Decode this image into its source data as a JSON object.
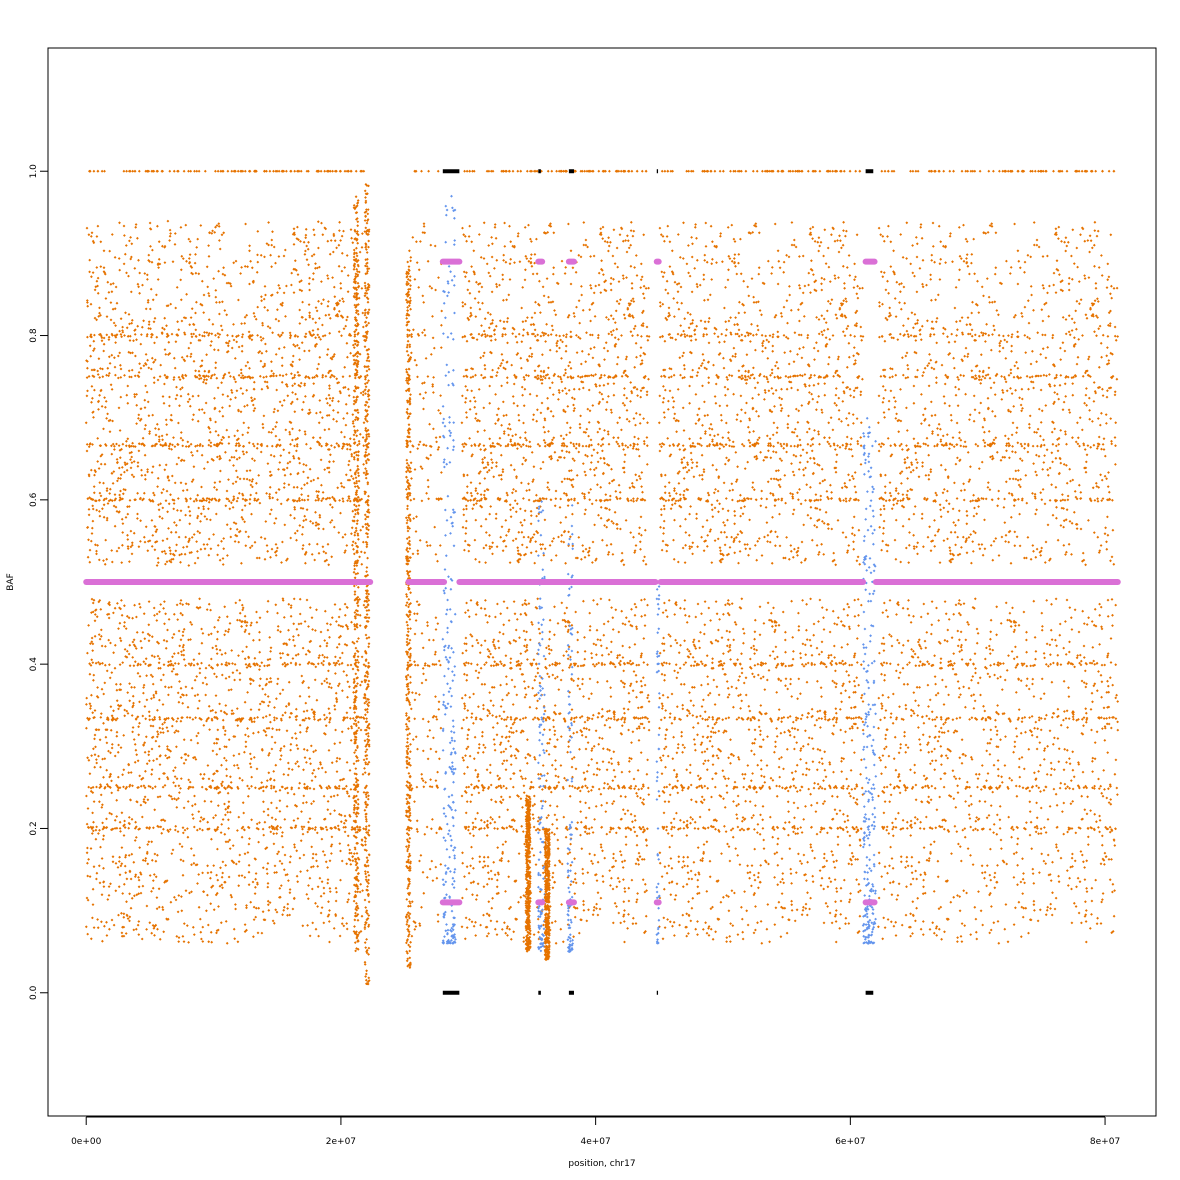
{
  "chart_data": {
    "type": "scatter",
    "xlabel": "position, chr17",
    "ylabel": "BAF",
    "xlim": [
      -3000000,
      84000000
    ],
    "ylim": [
      -0.15,
      1.15
    ],
    "x_ticks": [
      {
        "value": 0,
        "label": "0e+00"
      },
      {
        "value": 20000000,
        "label": "2e+07"
      },
      {
        "value": 40000000,
        "label": "4e+07"
      },
      {
        "value": 60000000,
        "label": "6e+07"
      },
      {
        "value": 80000000,
        "label": "8e+07"
      }
    ],
    "y_ticks": [
      {
        "value": 0.0,
        "label": "0.0"
      },
      {
        "value": 0.2,
        "label": "0.2"
      },
      {
        "value": 0.4,
        "label": "0.4"
      },
      {
        "value": 0.6,
        "label": "0.6"
      },
      {
        "value": 0.8,
        "label": "0.8"
      },
      {
        "value": 1.0,
        "label": "1.0"
      }
    ],
    "grid": false,
    "colors": {
      "baf_points": "#E67300",
      "het_points": "#6495ED",
      "segments": "#DA70D6",
      "homozygous": "#000000",
      "axes": "#000000",
      "background": "#FFFFFF"
    },
    "point_regions": [
      {
        "x_range": [
          0,
          22000000
        ],
        "density": 1.0
      },
      {
        "x_range": [
          25200000,
          28000000
        ],
        "density": 0.35
      },
      {
        "x_range": [
          29500000,
          44200000
        ],
        "density": 1.0
      },
      {
        "x_range": [
          45000000,
          61000000
        ],
        "density": 1.0
      },
      {
        "x_range": [
          62200000,
          81000000
        ],
        "density": 1.1
      }
    ],
    "vertical_streaks": [
      {
        "x": 21200000,
        "y_range": [
          0.05,
          0.97
        ]
      },
      {
        "x": 22050000,
        "y_range": [
          0.01,
          0.99
        ]
      },
      {
        "x": 25300000,
        "y_range": [
          0.03,
          0.9
        ]
      },
      {
        "x": 34700000,
        "y_range": [
          0.05,
          0.24
        ]
      },
      {
        "x": 36200000,
        "y_range": [
          0.04,
          0.2
        ]
      }
    ],
    "blue_regions": [
      {
        "x_range": [
          28000000,
          29000000
        ],
        "y_range": [
          0.06,
          0.97
        ]
      },
      {
        "x_range": [
          35500000,
          36000000
        ],
        "y_range": [
          0.05,
          0.6
        ]
      },
      {
        "x_range": [
          37800000,
          38200000
        ],
        "y_range": [
          0.05,
          0.6
        ]
      },
      {
        "x_range": [
          44800000,
          45000000
        ],
        "y_range": [
          0.06,
          0.5
        ]
      },
      {
        "x_range": [
          61000000,
          62000000
        ],
        "y_range": [
          0.06,
          0.7
        ]
      }
    ],
    "homozygous_segments": [
      {
        "x_range": [
          28000000,
          29300000
        ]
      },
      {
        "x_range": [
          35500000,
          35700000
        ]
      },
      {
        "x_range": [
          37900000,
          38300000
        ]
      },
      {
        "x_range": [
          44800000,
          44900000
        ]
      },
      {
        "x_range": [
          61200000,
          61800000
        ]
      }
    ],
    "segments": [
      {
        "x_range": [
          0,
          22300000
        ],
        "y": 0.5
      },
      {
        "x_range": [
          25300000,
          28100000
        ],
        "y": 0.5
      },
      {
        "x_range": [
          29300000,
          35800000
        ],
        "y": 0.5
      },
      {
        "x_range": [
          35800000,
          38000000
        ],
        "y": 0.5
      },
      {
        "x_range": [
          38000000,
          44700000
        ],
        "y": 0.5
      },
      {
        "x_range": [
          45100000,
          61000000
        ],
        "y": 0.5
      },
      {
        "x_range": [
          62000000,
          81000000
        ],
        "y": 0.5
      },
      {
        "x_range": [
          28000000,
          29300000
        ],
        "y": 0.89,
        "mirror": 0.11
      },
      {
        "x_range": [
          35500000,
          35800000
        ],
        "y": 0.89,
        "mirror": 0.11
      },
      {
        "x_range": [
          37900000,
          38300000
        ],
        "y": 0.89,
        "mirror": 0.11
      },
      {
        "x_range": [
          44800000,
          44950000
        ],
        "y": 0.89,
        "mirror": 0.11
      },
      {
        "x_range": [
          61200000,
          61900000
        ],
        "y": 0.89,
        "mirror": 0.11
      }
    ]
  }
}
